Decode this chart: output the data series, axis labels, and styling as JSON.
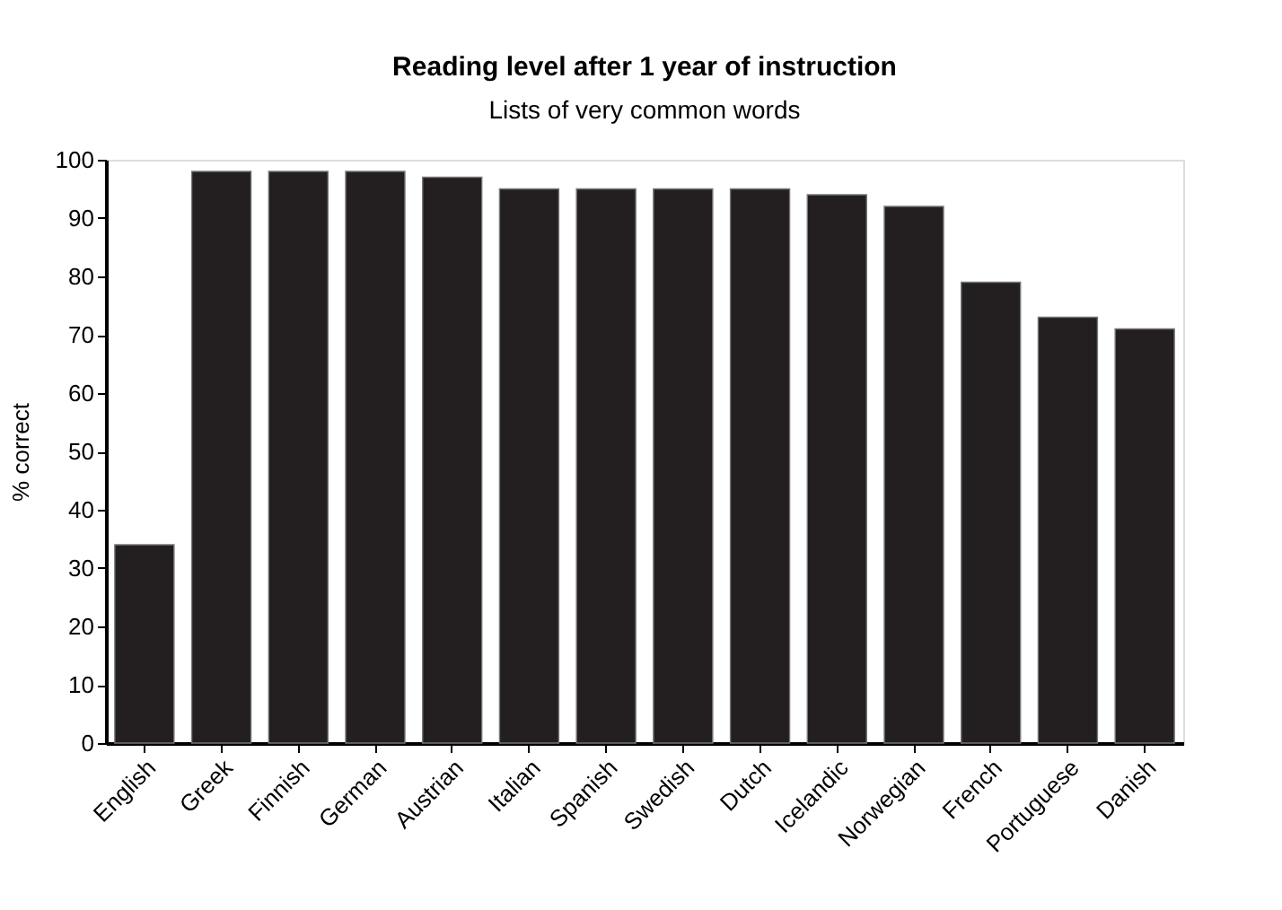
{
  "chart_data": {
    "type": "bar",
    "title": "Reading level after 1 year of instruction",
    "subtitle": "Lists of very common words",
    "ylabel": "% correct",
    "categories": [
      "English",
      "Greek",
      "Finnish",
      "German",
      "Austrian",
      "Italian",
      "Spanish",
      "Swedish",
      "Dutch",
      "Icelandic",
      "Norwegian",
      "French",
      "Portuguese",
      "Danish"
    ],
    "values": [
      34,
      98,
      98,
      98,
      97,
      95,
      95,
      95,
      95,
      94,
      92,
      79,
      73,
      71
    ],
    "color": "#231f20",
    "ylim": [
      0,
      100
    ],
    "yticks": [
      0,
      10,
      20,
      30,
      40,
      50,
      60,
      70,
      80,
      90,
      100
    ],
    "grid": false
  }
}
